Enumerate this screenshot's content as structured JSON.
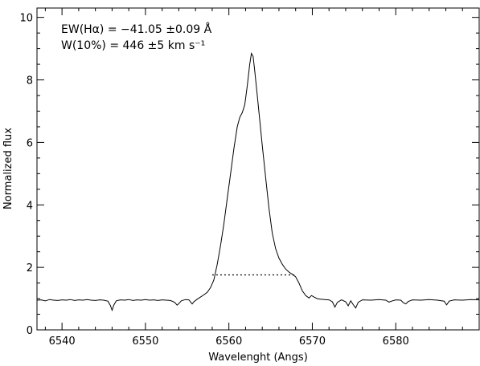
{
  "chart_data": {
    "type": "line",
    "title": "",
    "xlabel": "Wavelenght (Angs)",
    "ylabel": "Normalized flux",
    "xlim": [
      6537,
      6590
    ],
    "ylim": [
      0,
      10.3
    ],
    "x_ticks": [
      6540,
      6550,
      6560,
      6570,
      6580
    ],
    "y_ticks": [
      0,
      2,
      4,
      6,
      8,
      10
    ],
    "x_minor_step": 2,
    "y_minor_step": 0.5,
    "grid": false,
    "legend": "none",
    "line_color": "#000000",
    "annotations": [
      "EW(Hα) = −41.05 ±0.09 Å",
      "W(10%) = 446 ±5 km s⁻¹"
    ],
    "width_level": {
      "y": 1.76,
      "x_start": 6558.0,
      "x_end": 6568.0,
      "style": "dotted"
    },
    "series": [
      {
        "values": [
          [
            6537.0,
            0.95
          ],
          [
            6537.5,
            0.96
          ],
          [
            6538.0,
            0.93
          ],
          [
            6538.5,
            0.97
          ],
          [
            6539.0,
            0.95
          ],
          [
            6539.5,
            0.94
          ],
          [
            6540.0,
            0.96
          ],
          [
            6540.5,
            0.95
          ],
          [
            6541.0,
            0.97
          ],
          [
            6541.5,
            0.94
          ],
          [
            6542.0,
            0.96
          ],
          [
            6542.5,
            0.95
          ],
          [
            6543.0,
            0.97
          ],
          [
            6543.5,
            0.95
          ],
          [
            6544.0,
            0.94
          ],
          [
            6544.5,
            0.96
          ],
          [
            6545.0,
            0.95
          ],
          [
            6545.5,
            0.92
          ],
          [
            6545.8,
            0.78
          ],
          [
            6546.0,
            0.63
          ],
          [
            6546.2,
            0.79
          ],
          [
            6546.5,
            0.93
          ],
          [
            6547.0,
            0.96
          ],
          [
            6547.5,
            0.95
          ],
          [
            6548.0,
            0.97
          ],
          [
            6548.5,
            0.94
          ],
          [
            6549.0,
            0.96
          ],
          [
            6549.5,
            0.95
          ],
          [
            6550.0,
            0.97
          ],
          [
            6550.5,
            0.95
          ],
          [
            6551.0,
            0.96
          ],
          [
            6551.5,
            0.94
          ],
          [
            6552.0,
            0.96
          ],
          [
            6552.5,
            0.95
          ],
          [
            6553.0,
            0.94
          ],
          [
            6553.5,
            0.88
          ],
          [
            6553.8,
            0.79
          ],
          [
            6554.0,
            0.84
          ],
          [
            6554.3,
            0.93
          ],
          [
            6554.8,
            0.97
          ],
          [
            6555.2,
            0.96
          ],
          [
            6555.6,
            0.83
          ],
          [
            6555.8,
            0.9
          ],
          [
            6556.2,
            0.98
          ],
          [
            6556.6,
            1.05
          ],
          [
            6557.0,
            1.12
          ],
          [
            6557.4,
            1.2
          ],
          [
            6557.8,
            1.35
          ],
          [
            6558.2,
            1.6
          ],
          [
            6558.6,
            2.1
          ],
          [
            6559.0,
            2.7
          ],
          [
            6559.4,
            3.4
          ],
          [
            6559.8,
            4.2
          ],
          [
            6560.2,
            5.0
          ],
          [
            6560.6,
            5.8
          ],
          [
            6561.0,
            6.5
          ],
          [
            6561.3,
            6.8
          ],
          [
            6561.6,
            6.95
          ],
          [
            6561.9,
            7.2
          ],
          [
            6562.2,
            7.8
          ],
          [
            6562.5,
            8.5
          ],
          [
            6562.7,
            8.85
          ],
          [
            6562.9,
            8.75
          ],
          [
            6563.1,
            8.3
          ],
          [
            6563.4,
            7.5
          ],
          [
            6563.7,
            6.7
          ],
          [
            6564.0,
            5.9
          ],
          [
            6564.4,
            4.9
          ],
          [
            6564.8,
            3.9
          ],
          [
            6565.2,
            3.1
          ],
          [
            6565.6,
            2.6
          ],
          [
            6566.0,
            2.3
          ],
          [
            6566.4,
            2.1
          ],
          [
            6566.8,
            1.95
          ],
          [
            6567.2,
            1.85
          ],
          [
            6567.6,
            1.78
          ],
          [
            6568.0,
            1.7
          ],
          [
            6568.4,
            1.5
          ],
          [
            6568.8,
            1.25
          ],
          [
            6569.2,
            1.1
          ],
          [
            6569.6,
            1.02
          ],
          [
            6569.9,
            1.1
          ],
          [
            6570.2,
            1.05
          ],
          [
            6570.6,
            1.0
          ],
          [
            6571.0,
            0.98
          ],
          [
            6571.5,
            0.97
          ],
          [
            6572.0,
            0.96
          ],
          [
            6572.4,
            0.9
          ],
          [
            6572.7,
            0.73
          ],
          [
            6573.0,
            0.88
          ],
          [
            6573.5,
            0.96
          ],
          [
            6574.0,
            0.9
          ],
          [
            6574.3,
            0.77
          ],
          [
            6574.6,
            0.93
          ],
          [
            6574.9,
            0.81
          ],
          [
            6575.2,
            0.7
          ],
          [
            6575.5,
            0.88
          ],
          [
            6576.0,
            0.96
          ],
          [
            6577.0,
            0.95
          ],
          [
            6578.0,
            0.97
          ],
          [
            6578.8,
            0.95
          ],
          [
            6579.2,
            0.89
          ],
          [
            6579.5,
            0.92
          ],
          [
            6580.0,
            0.96
          ],
          [
            6580.6,
            0.95
          ],
          [
            6580.9,
            0.87
          ],
          [
            6581.2,
            0.83
          ],
          [
            6581.5,
            0.91
          ],
          [
            6582.0,
            0.96
          ],
          [
            6583.0,
            0.95
          ],
          [
            6584.0,
            0.97
          ],
          [
            6585.0,
            0.95
          ],
          [
            6585.8,
            0.92
          ],
          [
            6586.1,
            0.8
          ],
          [
            6586.4,
            0.92
          ],
          [
            6587.0,
            0.96
          ],
          [
            6588.0,
            0.95
          ],
          [
            6589.0,
            0.97
          ],
          [
            6590.0,
            0.96
          ]
        ]
      }
    ]
  }
}
